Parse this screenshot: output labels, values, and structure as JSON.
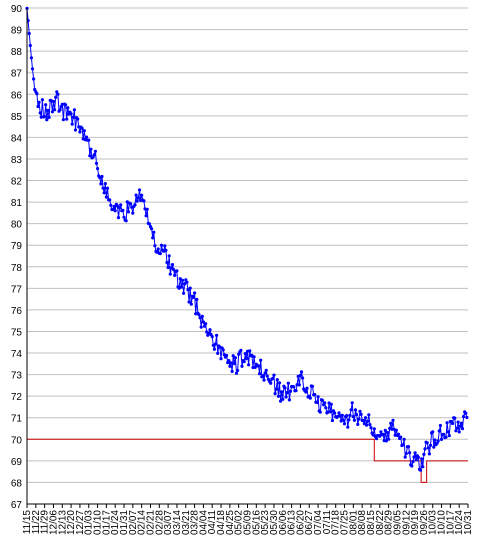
{
  "chart_data": {
    "type": "line",
    "title": "",
    "xlabel": "",
    "ylabel": "",
    "ylim": [
      67,
      90
    ],
    "grid": true,
    "yticks": [
      67,
      68,
      69,
      70,
      71,
      72,
      73,
      74,
      75,
      76,
      77,
      78,
      79,
      80,
      81,
      82,
      83,
      84,
      85,
      86,
      87,
      88,
      89,
      90
    ],
    "xticks": [
      "11/15",
      "11/22",
      "11/29",
      "12/06",
      "12/13",
      "12/20",
      "12/27",
      "01/03",
      "01/10",
      "01/17",
      "01/24",
      "01/31",
      "02/07",
      "02/14",
      "02/21",
      "02/28",
      "03/07",
      "03/14",
      "03/21",
      "03/28",
      "04/04",
      "04/11",
      "04/18",
      "04/25",
      "05/02",
      "05/09",
      "05/16",
      "05/23",
      "05/30",
      "06/06",
      "06/13",
      "06/20",
      "06/27",
      "07/04",
      "07/11",
      "07/18",
      "07/25",
      "08/01",
      "08/08",
      "08/15",
      "08/22",
      "08/29",
      "09/05",
      "09/12",
      "09/19",
      "09/26",
      "10/03",
      "10/10",
      "10/17",
      "10/24",
      "10/31"
    ],
    "weight_trend": [
      {
        "x": 0,
        "y": 90.0
      },
      {
        "x": 3,
        "y": 87.8
      },
      {
        "x": 6,
        "y": 86.0
      },
      {
        "x": 10,
        "y": 85.4
      },
      {
        "x": 14,
        "y": 85.1
      },
      {
        "x": 18,
        "y": 85.4
      },
      {
        "x": 22,
        "y": 85.7
      },
      {
        "x": 27,
        "y": 85.2
      },
      {
        "x": 32,
        "y": 85.0
      },
      {
        "x": 38,
        "y": 84.6
      },
      {
        "x": 44,
        "y": 83.6
      },
      {
        "x": 50,
        "y": 82.9
      },
      {
        "x": 56,
        "y": 81.7
      },
      {
        "x": 62,
        "y": 80.8
      },
      {
        "x": 68,
        "y": 80.5
      },
      {
        "x": 74,
        "y": 80.6
      },
      {
        "x": 80,
        "y": 81.3
      },
      {
        "x": 86,
        "y": 80.7
      },
      {
        "x": 92,
        "y": 79.2
      },
      {
        "x": 98,
        "y": 78.9
      },
      {
        "x": 104,
        "y": 78.0
      },
      {
        "x": 110,
        "y": 77.3
      },
      {
        "x": 116,
        "y": 76.9
      },
      {
        "x": 122,
        "y": 76.3
      },
      {
        "x": 128,
        "y": 75.4
      },
      {
        "x": 134,
        "y": 74.8
      },
      {
        "x": 140,
        "y": 74.1
      },
      {
        "x": 146,
        "y": 73.5
      },
      {
        "x": 152,
        "y": 73.5
      },
      {
        "x": 158,
        "y": 74.0
      },
      {
        "x": 164,
        "y": 73.5
      },
      {
        "x": 170,
        "y": 73.2
      },
      {
        "x": 176,
        "y": 72.8
      },
      {
        "x": 182,
        "y": 72.3
      },
      {
        "x": 188,
        "y": 72.0
      },
      {
        "x": 194,
        "y": 72.6
      },
      {
        "x": 200,
        "y": 72.8
      },
      {
        "x": 206,
        "y": 72.2
      },
      {
        "x": 212,
        "y": 71.7
      },
      {
        "x": 218,
        "y": 71.6
      },
      {
        "x": 224,
        "y": 71.0
      },
      {
        "x": 230,
        "y": 70.7
      },
      {
        "x": 236,
        "y": 71.3
      },
      {
        "x": 242,
        "y": 71.0
      },
      {
        "x": 248,
        "y": 70.9
      },
      {
        "x": 254,
        "y": 70.4
      },
      {
        "x": 260,
        "y": 70.2
      },
      {
        "x": 266,
        "y": 70.6
      },
      {
        "x": 272,
        "y": 69.9
      },
      {
        "x": 278,
        "y": 69.2
      },
      {
        "x": 284,
        "y": 68.8
      },
      {
        "x": 290,
        "y": 69.5
      },
      {
        "x": 296,
        "y": 70.1
      },
      {
        "x": 302,
        "y": 70.4
      },
      {
        "x": 308,
        "y": 70.5
      },
      {
        "x": 314,
        "y": 70.8
      },
      {
        "x": 320,
        "y": 70.9
      }
    ],
    "target_line": [
      {
        "x": 0,
        "y": 70.0
      },
      {
        "x": 252,
        "y": 70.0
      },
      {
        "x": 252,
        "y": 69.0
      },
      {
        "x": 286,
        "y": 69.0
      },
      {
        "x": 286,
        "y": 68.0
      },
      {
        "x": 290,
        "y": 68.0
      },
      {
        "x": 290,
        "y": 69.0
      },
      {
        "x": 320,
        "y": 69.0
      }
    ],
    "colors": {
      "series": "#0000ff",
      "target": "#cc0000",
      "grid": "#c0c0c0",
      "axis": "#000000",
      "background": "#ffffff"
    }
  }
}
